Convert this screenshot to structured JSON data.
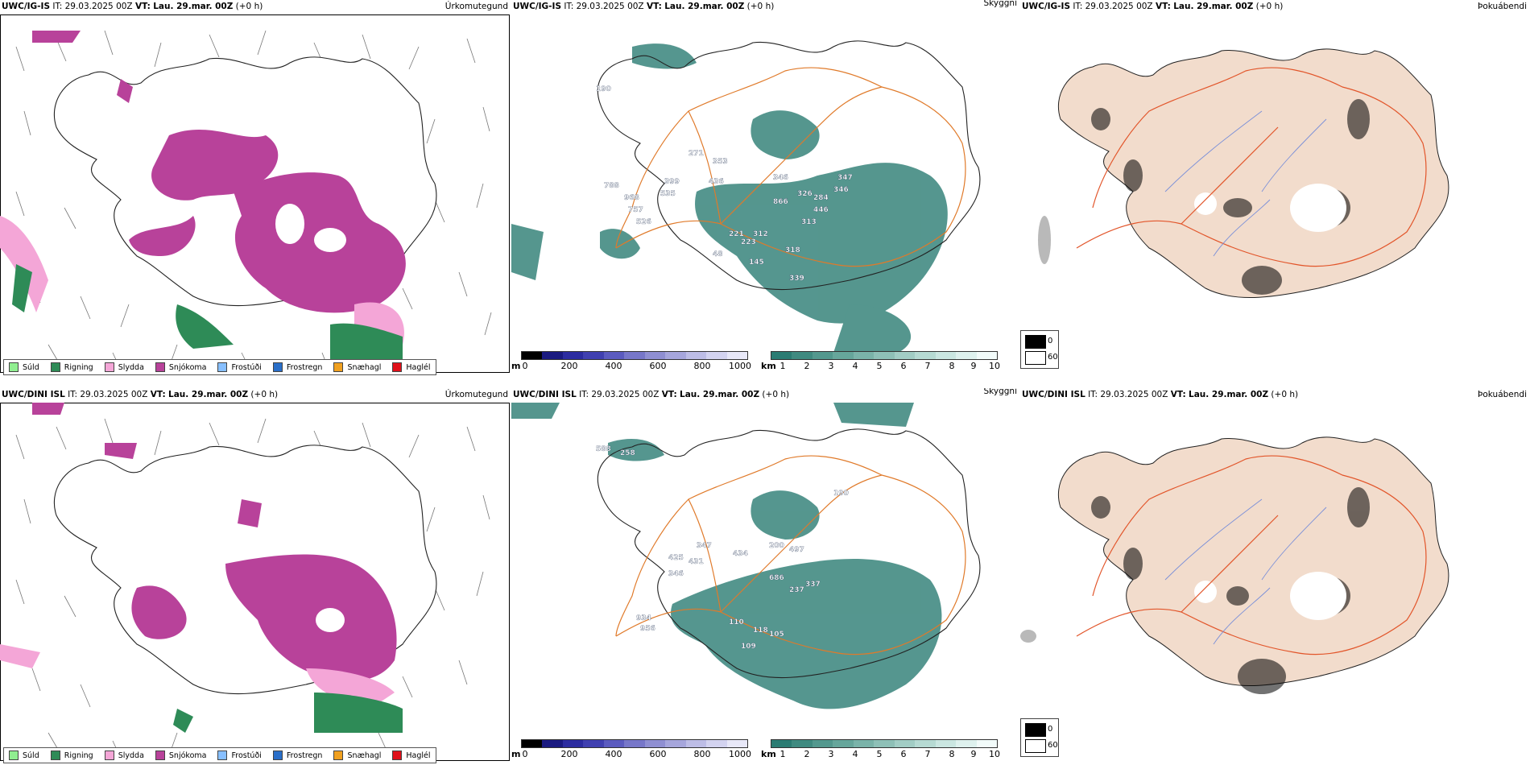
{
  "rows": [
    {
      "model": "UWC/IG-IS",
      "it_label": "IT:",
      "it_value": "29.03.2025 00Z",
      "vt_label": "VT:",
      "vt_value": "Lau. 29.mar. 00Z",
      "offset": "(+0 h)",
      "peak_labels": [
        "353",
        "271",
        "399",
        "436",
        "535",
        "788",
        "968",
        "757",
        "526",
        "346",
        "866",
        "326",
        "284",
        "446",
        "347",
        "346",
        "313",
        "312",
        "223",
        "221",
        "318",
        "145",
        "48",
        "339",
        "190"
      ]
    },
    {
      "model": "UWC/DINI ISL",
      "it_label": "IT:",
      "it_value": "29.03.2025 00Z",
      "vt_label": "VT:",
      "vt_value": "Lau. 29.mar. 00Z",
      "offset": "(+0 h)",
      "peak_labels": [
        "588",
        "258",
        "434",
        "347",
        "431",
        "425",
        "346",
        "200",
        "497",
        "686",
        "237",
        "337",
        "934",
        "956",
        "110",
        "118",
        "105",
        "109",
        "190"
      ]
    }
  ],
  "panel_titles": {
    "precip_type": "Úrkomutegund",
    "visibility": "Skyggni",
    "fog": "Þokuábendi"
  },
  "precip_legend": [
    {
      "label": "Súld",
      "color": "#90ee90"
    },
    {
      "label": "Rigning",
      "color": "#2e8b57"
    },
    {
      "label": "Slydda",
      "color": "#f4a6d7"
    },
    {
      "label": "Snjókoma",
      "color": "#b8429a"
    },
    {
      "label": "Frostúði",
      "color": "#87bfff"
    },
    {
      "label": "Frostregn",
      "color": "#2a6fc9"
    },
    {
      "label": "Snæhagl",
      "color": "#f0a020"
    },
    {
      "label": "Haglél",
      "color": "#e0101a"
    }
  ],
  "elevation_bar": {
    "unit": "m",
    "ticks": [
      "0",
      "200",
      "400",
      "600",
      "800",
      "1000"
    ],
    "colors": [
      "#000000",
      "#1a1a80",
      "#2c2ca0",
      "#4040b0",
      "#5b5bbf",
      "#7777c9",
      "#8f8fd2",
      "#a6a6dc",
      "#bdbde6",
      "#d3d3f0",
      "#e8e8f8"
    ]
  },
  "visibility_bar": {
    "unit": "km",
    "ticks": [
      "1",
      "2",
      "3",
      "4",
      "5",
      "6",
      "7",
      "8",
      "9",
      "10"
    ],
    "colors": [
      "#2b7c73",
      "#3f8a80",
      "#53988e",
      "#66a69b",
      "#7ab3a9",
      "#8ec0b7",
      "#a2cdc5",
      "#b6dad3",
      "#cae6e1",
      "#def1ee",
      "#f2fbfa"
    ]
  },
  "fog_key": {
    "dark_label": "0",
    "light_label": "60"
  },
  "palette": {
    "snow": "#b8429a",
    "rain": "#2e8b57",
    "sleet": "#f4a6d7",
    "vis_teal": "#2b7c73",
    "roads": "#e07a2a",
    "fog_land": "#f2dccc",
    "fog_roads": "#e2552a",
    "fog_rivers": "#7a8fd8"
  }
}
